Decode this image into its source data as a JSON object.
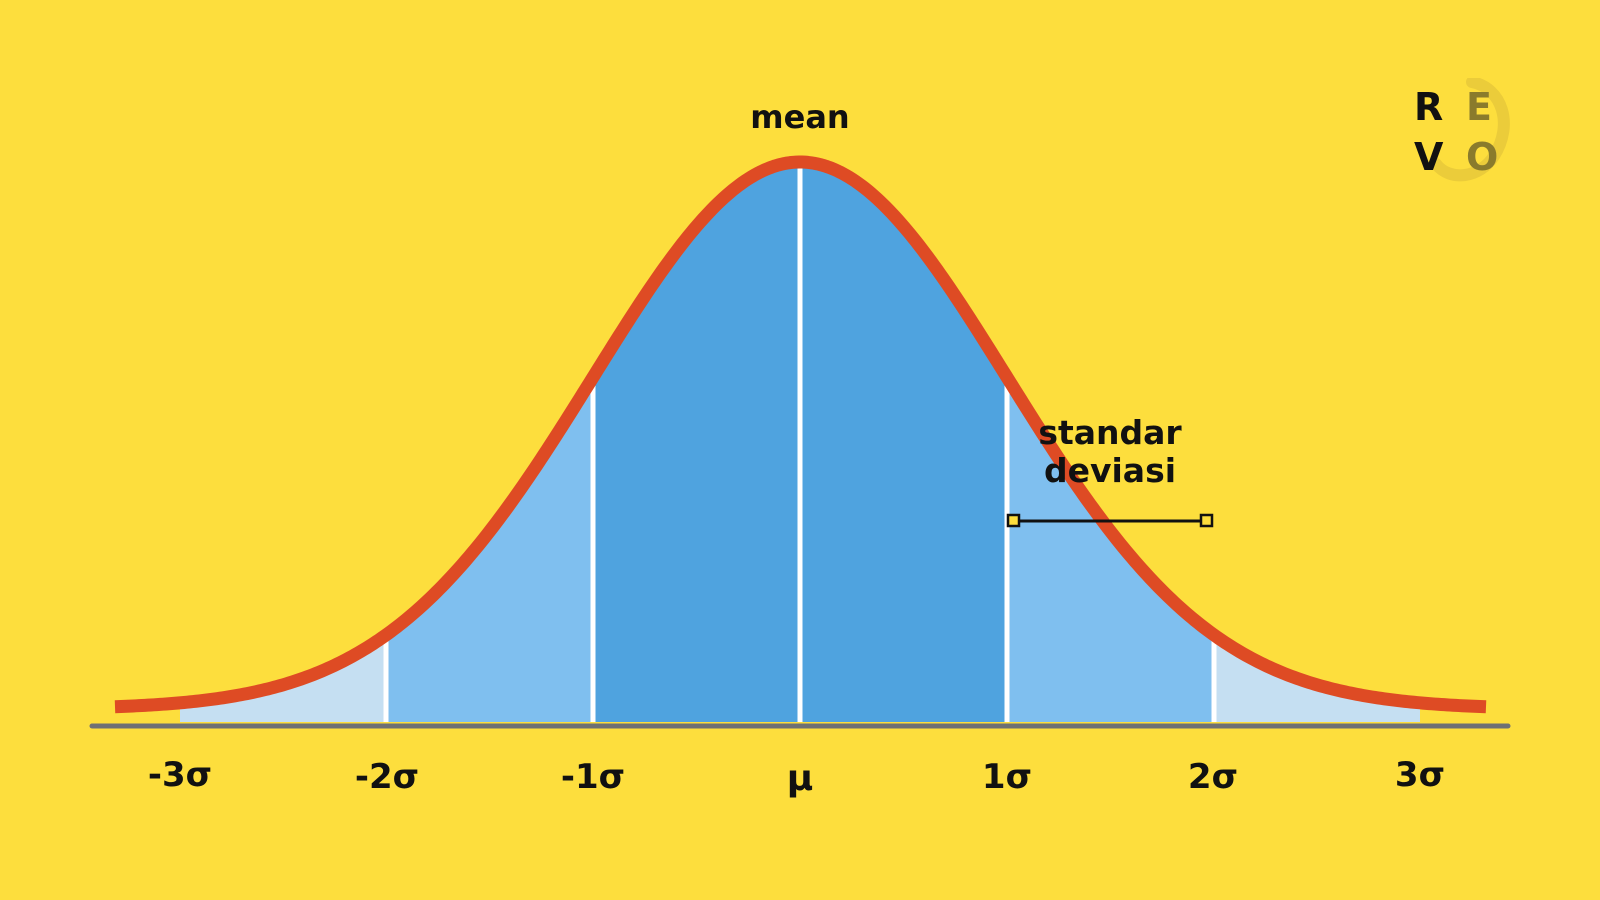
{
  "diagram": {
    "mean_label": "mean",
    "stdev_label_line1": "standar",
    "stdev_label_line2": "deviasi",
    "axis_labels": [
      "-3σ",
      "-2σ",
      "-1σ",
      "μ",
      "1σ",
      "2σ",
      "3σ"
    ]
  },
  "logo": {
    "letters": [
      "R",
      "E",
      "V",
      "O"
    ]
  },
  "colors": {
    "background": "#FDDE3D",
    "curve": "#DE4B24",
    "band_inner": "#4FA3DF",
    "band_middle": "#7FBFEF",
    "band_outer": "#C5DFF2",
    "axis": "#6E7074",
    "divider": "#FFFFFF",
    "text": "#111111"
  }
}
